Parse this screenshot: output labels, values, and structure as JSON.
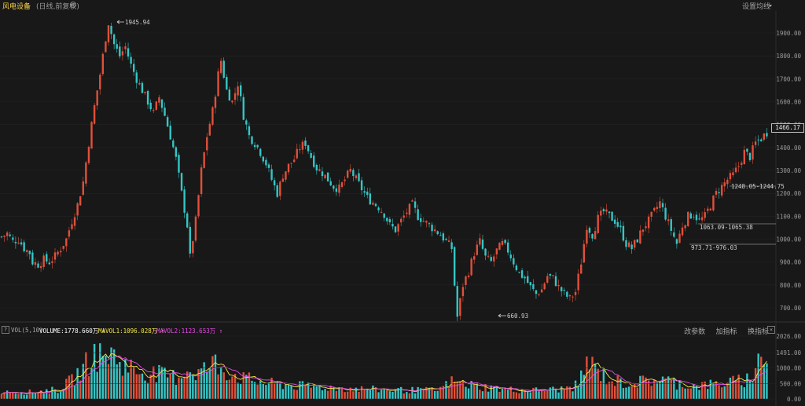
{
  "header": {
    "title": "风电设备",
    "subtitle": "(日线,前复权)",
    "ma_settings": "设置均线"
  },
  "colors": {
    "up": "#e0503a",
    "down": "#35c6c6",
    "ma1": "#f2e64a",
    "ma2": "#e84de8",
    "bg": "#181818"
  },
  "price_axis": {
    "ticks": [
      "1900.00",
      "1800.00",
      "1700.00",
      "1600.00",
      "1500.00",
      "1400.00",
      "1300.00",
      "1200.00",
      "1100.00",
      "1000.00",
      "900.00",
      "800.00",
      "700.00"
    ],
    "current": "1466.17"
  },
  "annotations": {
    "high": "1945.94",
    "low": "660.93",
    "range1": "1248.05-1244.75",
    "range2": "1063.09-1065.38",
    "range3": "973.71-976.03"
  },
  "volume_panel": {
    "help": "?",
    "name": "VOL(5,10)",
    "volume": "VOLUME:1778.660万 ↑",
    "mavol1": "MAVOL1:1096.028万 ↑",
    "mavol2": "MAVOL2:1123.653万 ↑",
    "tools": [
      "改参数",
      "加指标",
      "换指标"
    ],
    "close": "×",
    "ticks": [
      "2026.00",
      "1491.00",
      "1000.00",
      "500.00",
      "0.00"
    ]
  },
  "chart_data": {
    "type": "candlestick",
    "title": "风电设备",
    "subtitle": "(日线,前复权)",
    "price_ylim": [
      640,
      1960
    ],
    "volume_ylim": [
      0,
      2026
    ],
    "price_path": [
      [
        0,
        1010
      ],
      [
        2,
        1025
      ],
      [
        4,
        990
      ],
      [
        6,
        1000
      ],
      [
        8,
        960
      ],
      [
        10,
        940
      ],
      [
        11,
        900
      ],
      [
        13,
        890
      ],
      [
        15,
        910
      ],
      [
        17,
        900
      ],
      [
        19,
        925
      ],
      [
        21,
        960
      ],
      [
        23,
        1000
      ],
      [
        25,
        1080
      ],
      [
        27,
        1150
      ],
      [
        29,
        1250
      ],
      [
        31,
        1420
      ],
      [
        33,
        1580
      ],
      [
        35,
        1720
      ],
      [
        37,
        1880
      ],
      [
        38,
        1945.94
      ],
      [
        40,
        1850
      ],
      [
        42,
        1800
      ],
      [
        44,
        1840
      ],
      [
        46,
        1760
      ],
      [
        48,
        1700
      ],
      [
        50,
        1650
      ],
      [
        52,
        1600
      ],
      [
        54,
        1550
      ],
      [
        56,
        1620
      ],
      [
        58,
        1540
      ],
      [
        60,
        1450
      ],
      [
        62,
        1350
      ],
      [
        64,
        1200
      ],
      [
        66,
        1060
      ],
      [
        67,
        920
      ],
      [
        69,
        1080
      ],
      [
        71,
        1300
      ],
      [
        73,
        1450
      ],
      [
        75,
        1560
      ],
      [
        77,
        1720
      ],
      [
        78,
        1780
      ],
      [
        80,
        1650
      ],
      [
        82,
        1600
      ],
      [
        84,
        1680
      ],
      [
        86,
        1540
      ],
      [
        88,
        1450
      ],
      [
        90,
        1420
      ],
      [
        92,
        1380
      ],
      [
        94,
        1330
      ],
      [
        96,
        1260
      ],
      [
        98,
        1200
      ],
      [
        100,
        1280
      ],
      [
        102,
        1320
      ],
      [
        104,
        1350
      ],
      [
        106,
        1400
      ],
      [
        108,
        1420
      ],
      [
        110,
        1360
      ],
      [
        112,
        1310
      ],
      [
        114,
        1290
      ],
      [
        116,
        1260
      ],
      [
        118,
        1230
      ],
      [
        120,
        1220
      ],
      [
        122,
        1260
      ],
      [
        124,
        1300
      ],
      [
        126,
        1260
      ],
      [
        128,
        1220
      ],
      [
        130,
        1180
      ],
      [
        132,
        1160
      ],
      [
        134,
        1140
      ],
      [
        136,
        1110
      ],
      [
        138,
        1060
      ],
      [
        140,
        1040
      ],
      [
        142,
        1080
      ],
      [
        144,
        1120
      ],
      [
        146,
        1150
      ],
      [
        148,
        1100
      ],
      [
        150,
        1080
      ],
      [
        152,
        1060
      ],
      [
        154,
        1040
      ],
      [
        156,
        1020
      ],
      [
        158,
        990
      ],
      [
        160,
        960
      ],
      [
        161,
        800
      ],
      [
        162,
        660.93
      ],
      [
        164,
        800
      ],
      [
        166,
        860
      ],
      [
        168,
        940
      ],
      [
        170,
        990
      ],
      [
        172,
        920
      ],
      [
        174,
        900
      ],
      [
        176,
        950
      ],
      [
        178,
        980
      ],
      [
        180,
        950
      ],
      [
        182,
        900
      ],
      [
        184,
        850
      ],
      [
        186,
        830
      ],
      [
        188,
        790
      ],
      [
        190,
        760
      ],
      [
        192,
        780
      ],
      [
        194,
        840
      ],
      [
        196,
        830
      ],
      [
        198,
        790
      ],
      [
        200,
        760
      ],
      [
        202,
        740
      ],
      [
        204,
        770
      ],
      [
        206,
        900
      ],
      [
        208,
        1060
      ],
      [
        210,
        1020
      ],
      [
        212,
        1090
      ],
      [
        214,
        1120
      ],
      [
        216,
        1100
      ],
      [
        218,
        1080
      ],
      [
        220,
        1040
      ],
      [
        222,
        980
      ],
      [
        224,
        960
      ],
      [
        226,
        1000
      ],
      [
        228,
        1050
      ],
      [
        230,
        1080
      ],
      [
        232,
        1120
      ],
      [
        234,
        1160
      ],
      [
        236,
        1100
      ],
      [
        238,
        1040
      ],
      [
        240,
        980
      ],
      [
        242,
        1060
      ],
      [
        244,
        1100
      ],
      [
        246,
        1110
      ],
      [
        248,
        1080
      ],
      [
        250,
        1100
      ],
      [
        252,
        1150
      ],
      [
        254,
        1200
      ],
      [
        256,
        1230
      ],
      [
        258,
        1260
      ],
      [
        260,
        1280
      ],
      [
        262,
        1320
      ],
      [
        264,
        1380
      ],
      [
        266,
        1360
      ],
      [
        268,
        1420
      ],
      [
        270,
        1440
      ],
      [
        272,
        1466.17
      ]
    ],
    "volume_path": [
      [
        0,
        260
      ],
      [
        10,
        220
      ],
      [
        20,
        300
      ],
      [
        25,
        600
      ],
      [
        30,
        1100
      ],
      [
        33,
        1450
      ],
      [
        36,
        1300
      ],
      [
        38,
        1500
      ],
      [
        42,
        1200
      ],
      [
        48,
        900
      ],
      [
        55,
        800
      ],
      [
        62,
        700
      ],
      [
        66,
        950
      ],
      [
        70,
        850
      ],
      [
        76,
        1150
      ],
      [
        80,
        900
      ],
      [
        86,
        650
      ],
      [
        95,
        500
      ],
      [
        105,
        420
      ],
      [
        115,
        380
      ],
      [
        125,
        330
      ],
      [
        135,
        300
      ],
      [
        145,
        280
      ],
      [
        155,
        280
      ],
      [
        160,
        550
      ],
      [
        165,
        480
      ],
      [
        170,
        400
      ],
      [
        180,
        300
      ],
      [
        190,
        280
      ],
      [
        200,
        320
      ],
      [
        205,
        450
      ],
      [
        208,
        1200
      ],
      [
        212,
        900
      ],
      [
        216,
        620
      ],
      [
        222,
        500
      ],
      [
        228,
        560
      ],
      [
        234,
        650
      ],
      [
        240,
        500
      ],
      [
        246,
        420
      ],
      [
        252,
        460
      ],
      [
        258,
        520
      ],
      [
        264,
        600
      ],
      [
        268,
        800
      ],
      [
        270,
        1778.66
      ],
      [
        272,
        1100
      ]
    ]
  }
}
